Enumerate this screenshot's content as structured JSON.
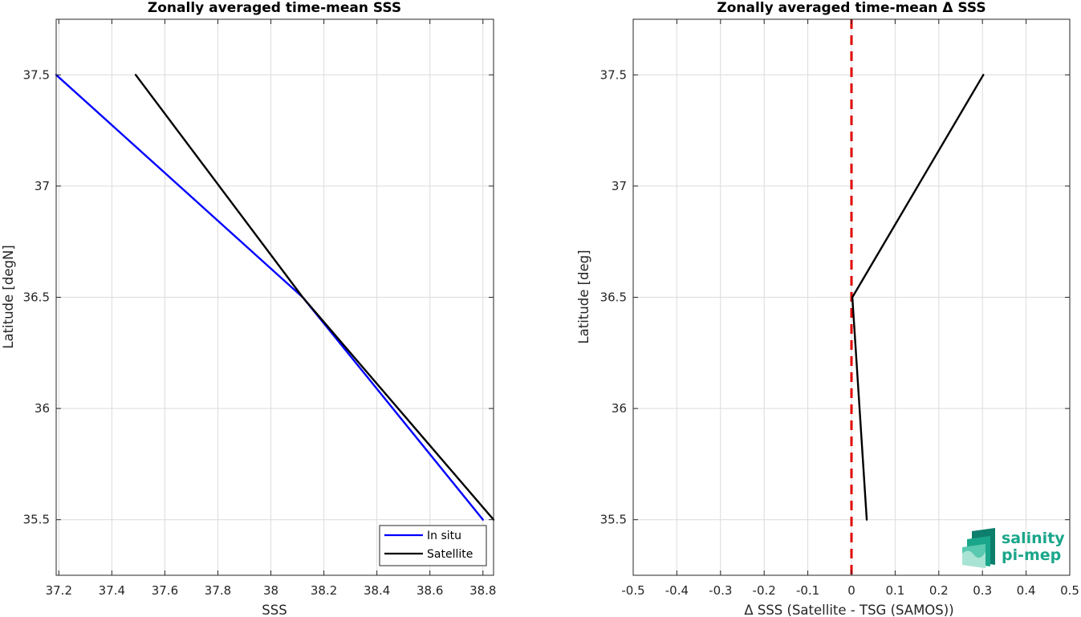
{
  "chart_data": [
    {
      "type": "line",
      "title": "Zonally averaged time-mean SSS",
      "xlabel": "SSS",
      "ylabel": "Latitude [degN]",
      "xlim": [
        37.19,
        38.84
      ],
      "ylim": [
        35.25,
        37.75
      ],
      "xticks": [
        37.2,
        37.4,
        37.6,
        37.8,
        38,
        38.2,
        38.4,
        38.6,
        38.8
      ],
      "xtick_labels": [
        "37.2",
        "37.4",
        "37.6",
        "37.8",
        "38",
        "38.2",
        "38.4",
        "38.6",
        "38.8"
      ],
      "yticks": [
        35.5,
        36,
        36.5,
        37,
        37.5
      ],
      "ytick_labels": [
        "35.5",
        "36",
        "36.5",
        "37",
        "37.5"
      ],
      "grid": true,
      "legend_position": "bottom-right",
      "series": [
        {
          "name": "In situ",
          "color": "#0000ff",
          "x": [
            38.8,
            38.12,
            37.19
          ],
          "y": [
            35.5,
            36.5,
            37.5
          ]
        },
        {
          "name": "Satellite",
          "color": "#000000",
          "x": [
            38.84,
            38.12,
            37.49
          ],
          "y": [
            35.5,
            36.5,
            37.5
          ]
        }
      ]
    },
    {
      "type": "line",
      "title": "Zonally averaged time-mean Δ SSS",
      "xlabel": "Δ SSS (Satellite - TSG (SAMOS))",
      "ylabel": "Latitude [deg]",
      "xlim": [
        -0.5,
        0.5
      ],
      "ylim": [
        35.25,
        37.75
      ],
      "xticks": [
        -0.5,
        -0.4,
        -0.3,
        -0.2,
        -0.1,
        0,
        0.1,
        0.2,
        0.3,
        0.4,
        0.5
      ],
      "xtick_labels": [
        "-0.5",
        "-0.4",
        "-0.3",
        "-0.2",
        "-0.1",
        "0",
        "0.1",
        "0.2",
        "0.3",
        "0.4",
        "0.5"
      ],
      "yticks": [
        35.5,
        36,
        36.5,
        37,
        37.5
      ],
      "ytick_labels": [
        "35.5",
        "36",
        "36.5",
        "37",
        "37.5"
      ],
      "grid": true,
      "series": [
        {
          "color": "#000000",
          "x": [
            0.035,
            0.002,
            0.302
          ],
          "y": [
            35.5,
            36.5,
            37.5
          ]
        }
      ],
      "reference_line": {
        "x": 0,
        "color": "#e00000",
        "style": "dashed"
      }
    }
  ],
  "logo": {
    "line1": "salinity",
    "line2": "pi-mep",
    "color": "#1aa68a"
  }
}
